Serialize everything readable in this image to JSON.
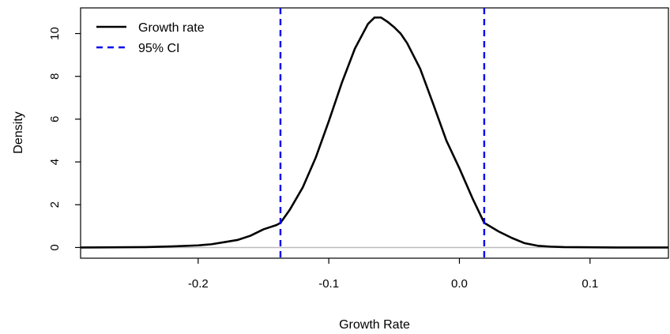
{
  "chart_data": {
    "type": "line",
    "title": "",
    "xlabel": "Growth Rate",
    "ylabel": "Density",
    "xlim": [
      -0.29,
      0.16
    ],
    "ylim": [
      -0.5,
      11.2
    ],
    "x_ticks": [
      -0.2,
      -0.1,
      0.0,
      0.1
    ],
    "x_tick_labels": [
      "-0.2",
      "-0.1",
      "0.0",
      "0.1"
    ],
    "y_ticks": [
      0,
      2,
      4,
      6,
      8,
      10
    ],
    "y_tick_labels": [
      "0",
      "2",
      "4",
      "6",
      "8",
      "10"
    ],
    "grid": false,
    "legend_position": "top-left",
    "baseline": {
      "y": 0,
      "color": "#bbbbbb"
    },
    "series": [
      {
        "name": "Growth rate",
        "color": "#000000",
        "style": "solid",
        "x": [
          -0.29,
          -0.24,
          -0.22,
          -0.2,
          -0.19,
          -0.18,
          -0.17,
          -0.16,
          -0.15,
          -0.14,
          -0.137,
          -0.13,
          -0.12,
          -0.11,
          -0.1,
          -0.09,
          -0.08,
          -0.07,
          -0.065,
          -0.06,
          -0.055,
          -0.05,
          -0.045,
          -0.04,
          -0.03,
          -0.02,
          -0.01,
          0.0,
          0.01,
          0.019,
          0.03,
          0.04,
          0.05,
          0.06,
          0.07,
          0.08,
          0.1,
          0.12,
          0.16
        ],
        "y": [
          0.0,
          0.02,
          0.05,
          0.1,
          0.15,
          0.25,
          0.35,
          0.55,
          0.85,
          1.05,
          1.15,
          1.75,
          2.8,
          4.2,
          5.9,
          7.7,
          9.3,
          10.45,
          10.75,
          10.75,
          10.55,
          10.3,
          10.0,
          9.55,
          8.35,
          6.7,
          5.0,
          3.7,
          2.3,
          1.15,
          0.75,
          0.45,
          0.2,
          0.08,
          0.04,
          0.02,
          0.01,
          0.0,
          0.0
        ]
      }
    ],
    "ci_lines": {
      "name": "95% CI",
      "color": "#0000ee",
      "style": "dashed",
      "x": [
        -0.137,
        0.019
      ]
    }
  }
}
